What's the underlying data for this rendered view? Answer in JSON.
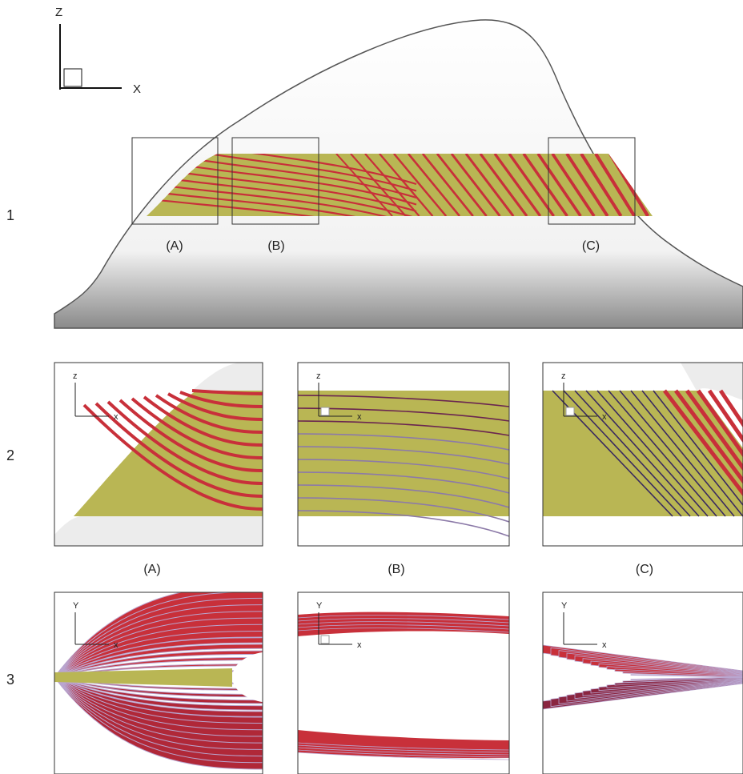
{
  "figure": {
    "rows": [
      "1",
      "2",
      "3"
    ],
    "overview": {
      "axis_vertical": "Z",
      "axis_horizontal": "X",
      "boxes": [
        "(A)",
        "(B)",
        "(C)"
      ]
    },
    "row2": {
      "axes": [
        [
          "z",
          "x"
        ],
        [
          "z",
          "x"
        ],
        [
          "z",
          "x"
        ]
      ],
      "captions": [
        "(A)",
        "(B)",
        "(C)"
      ]
    },
    "row3": {
      "axes": [
        [
          "Y",
          "x"
        ],
        [
          "Y",
          "x"
        ],
        [
          "Y",
          "x"
        ]
      ]
    }
  }
}
